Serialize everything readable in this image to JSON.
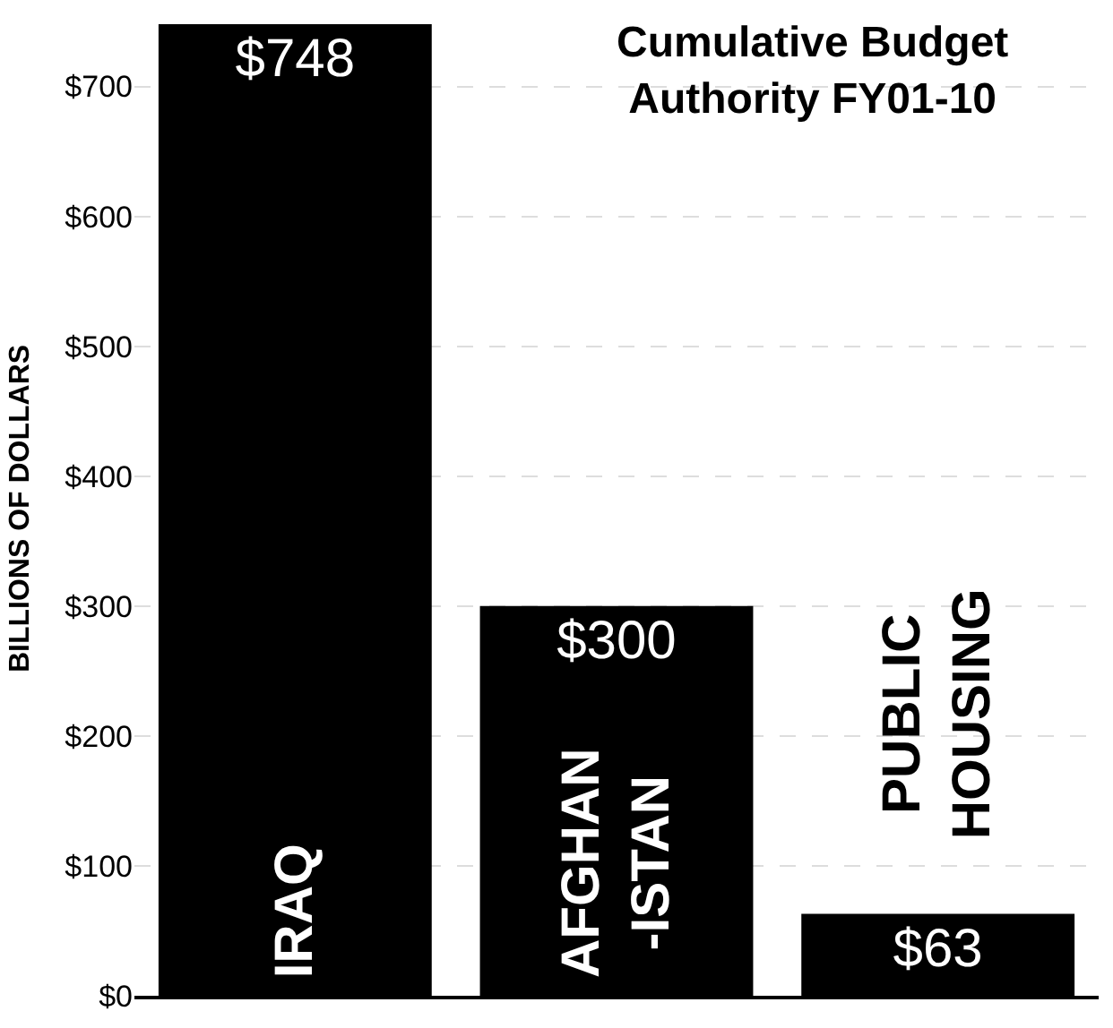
{
  "chart_data": {
    "type": "bar",
    "title": "Cumulative Budget Authority FY01-10",
    "ylabel": "BILLIONS OF DOLLARS",
    "categories": [
      "IRAQ",
      "AFGHAN -ISTAN",
      "PUBLIC HOUSING"
    ],
    "values": [
      748,
      300,
      63
    ],
    "value_labels": [
      "$748",
      "$300",
      "$63"
    ],
    "color": "#000000",
    "ylim": [
      0,
      750
    ],
    "yticks": [
      {
        "value": 0,
        "label": "$0"
      },
      {
        "value": 100,
        "label": "$100"
      },
      {
        "value": 200,
        "label": "$200"
      },
      {
        "value": 300,
        "label": "$300"
      },
      {
        "value": 400,
        "label": "$400"
      },
      {
        "value": 500,
        "label": "$500"
      },
      {
        "value": 600,
        "label": "$600"
      },
      {
        "value": 700,
        "label": "$700"
      }
    ],
    "grid": "y",
    "legend": false,
    "tick_labels": "y"
  }
}
